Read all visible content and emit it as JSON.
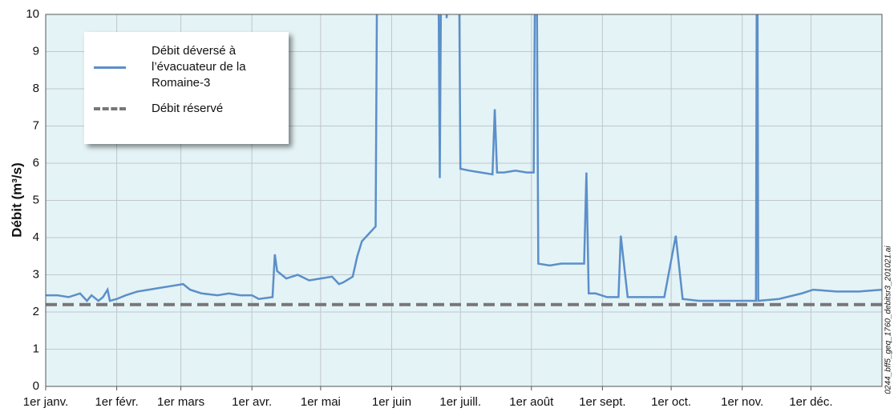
{
  "chart_data": {
    "type": "line",
    "ylabel": "Débit (m³/s)",
    "note": "0244_bff5_geq_1760_debitsr3_201021.ai",
    "xlim": [
      0,
      365
    ],
    "ylim": [
      0,
      10
    ],
    "yticks": [
      0,
      1,
      2,
      3,
      4,
      5,
      6,
      7,
      8,
      9,
      10
    ],
    "xticks": [
      {
        "value": 0,
        "label": "1er janv."
      },
      {
        "value": 31,
        "label": "1er févr."
      },
      {
        "value": 59,
        "label": "1er mars"
      },
      {
        "value": 90,
        "label": "1er avr."
      },
      {
        "value": 120,
        "label": "1er mai"
      },
      {
        "value": 151,
        "label": "1er juin"
      },
      {
        "value": 181,
        "label": "1er juill."
      },
      {
        "value": 212,
        "label": "1er août"
      },
      {
        "value": 243,
        "label": "1er sept."
      },
      {
        "value": 273,
        "label": "1er oct."
      },
      {
        "value": 304,
        "label": "1er nov."
      },
      {
        "value": 334,
        "label": "1er déc."
      }
    ],
    "grid": true,
    "legend": "upper left",
    "series": [
      {
        "name": "Débit déversé à l’évacuateur de la Romaine-3",
        "color": "#5b8fc9",
        "dash": false,
        "x": [
          0,
          5,
          10,
          15,
          18,
          20,
          23,
          25,
          27,
          28,
          31,
          35,
          40,
          45,
          50,
          55,
          60,
          63,
          68,
          75,
          80,
          85,
          90,
          93,
          99,
          100,
          101,
          105,
          110,
          115,
          120,
          125,
          128,
          130,
          134,
          136,
          138,
          141,
          144,
          145,
          171,
          172,
          173,
          175,
          180,
          181,
          185,
          190,
          195,
          196,
          197,
          200,
          205,
          210,
          213,
          214,
          215,
          220,
          225,
          228,
          235,
          236,
          237,
          240,
          245,
          250,
          251,
          254,
          260,
          270,
          275,
          278,
          285,
          295,
          310,
          310.5,
          311,
          320,
          330,
          335,
          345,
          355,
          365
        ],
        "values": [
          2.45,
          2.45,
          2.4,
          2.5,
          2.3,
          2.45,
          2.3,
          2.4,
          2.6,
          2.3,
          2.35,
          2.45,
          2.55,
          2.6,
          2.65,
          2.7,
          2.75,
          2.6,
          2.5,
          2.45,
          2.5,
          2.45,
          2.45,
          2.35,
          2.4,
          3.55,
          3.1,
          2.9,
          3.0,
          2.85,
          2.9,
          2.95,
          2.75,
          2.8,
          2.95,
          3.5,
          3.9,
          4.1,
          4.3,
          15,
          15,
          5.6,
          15,
          9.9,
          15,
          5.85,
          5.8,
          5.75,
          5.7,
          7.45,
          5.75,
          5.75,
          5.8,
          5.75,
          5.75,
          15,
          3.3,
          3.25,
          3.3,
          3.3,
          3.3,
          5.75,
          2.5,
          2.5,
          2.4,
          2.4,
          4.05,
          2.4,
          2.4,
          2.4,
          4.05,
          2.35,
          2.3,
          2.3,
          2.3,
          15,
          2.3,
          2.35,
          2.5,
          2.6,
          2.55,
          2.55,
          2.6
        ]
      },
      {
        "name": "Débit réservé",
        "color": "#777777",
        "dash": true,
        "x": [
          0,
          365
        ],
        "values": [
          2.2,
          2.2
        ]
      }
    ]
  }
}
